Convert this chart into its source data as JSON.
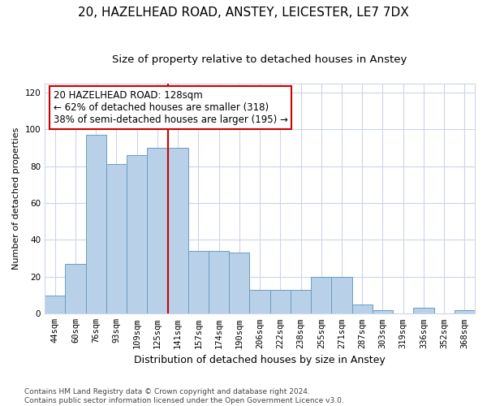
{
  "title1": "20, HAZELHEAD ROAD, ANSTEY, LEICESTER, LE7 7DX",
  "title2": "Size of property relative to detached houses in Anstey",
  "xlabel": "Distribution of detached houses by size in Anstey",
  "ylabel": "Number of detached properties",
  "categories": [
    "44sqm",
    "60sqm",
    "76sqm",
    "93sqm",
    "109sqm",
    "125sqm",
    "141sqm",
    "157sqm",
    "174sqm",
    "190sqm",
    "206sqm",
    "222sqm",
    "238sqm",
    "255sqm",
    "271sqm",
    "287sqm",
    "303sqm",
    "319sqm",
    "336sqm",
    "352sqm",
    "368sqm"
  ],
  "values": [
    10,
    27,
    97,
    81,
    86,
    90,
    90,
    34,
    34,
    33,
    13,
    13,
    13,
    20,
    20,
    5,
    2,
    0,
    3,
    0,
    2
  ],
  "bar_color": "#b8d0e8",
  "bar_edge_color": "#6a9ec0",
  "vline_index": 5,
  "vline_color": "#cc0000",
  "annotation_line1": "20 HAZELHEAD ROAD: 128sqm",
  "annotation_line2": "← 62% of detached houses are smaller (318)",
  "annotation_line3": "38% of semi-detached houses are larger (195) →",
  "annotation_box_color": "#ffffff",
  "annotation_box_edge": "#cc0000",
  "ylim": [
    0,
    125
  ],
  "yticks": [
    0,
    20,
    40,
    60,
    80,
    100,
    120
  ],
  "footer": "Contains HM Land Registry data © Crown copyright and database right 2024.\nContains public sector information licensed under the Open Government Licence v3.0.",
  "bg_color": "#ffffff",
  "grid_color": "#ccd6e8",
  "title1_fontsize": 11,
  "title2_fontsize": 9.5,
  "xlabel_fontsize": 9,
  "ylabel_fontsize": 8,
  "tick_fontsize": 7.5,
  "annotation_fontsize": 8.5,
  "footer_fontsize": 6.5
}
